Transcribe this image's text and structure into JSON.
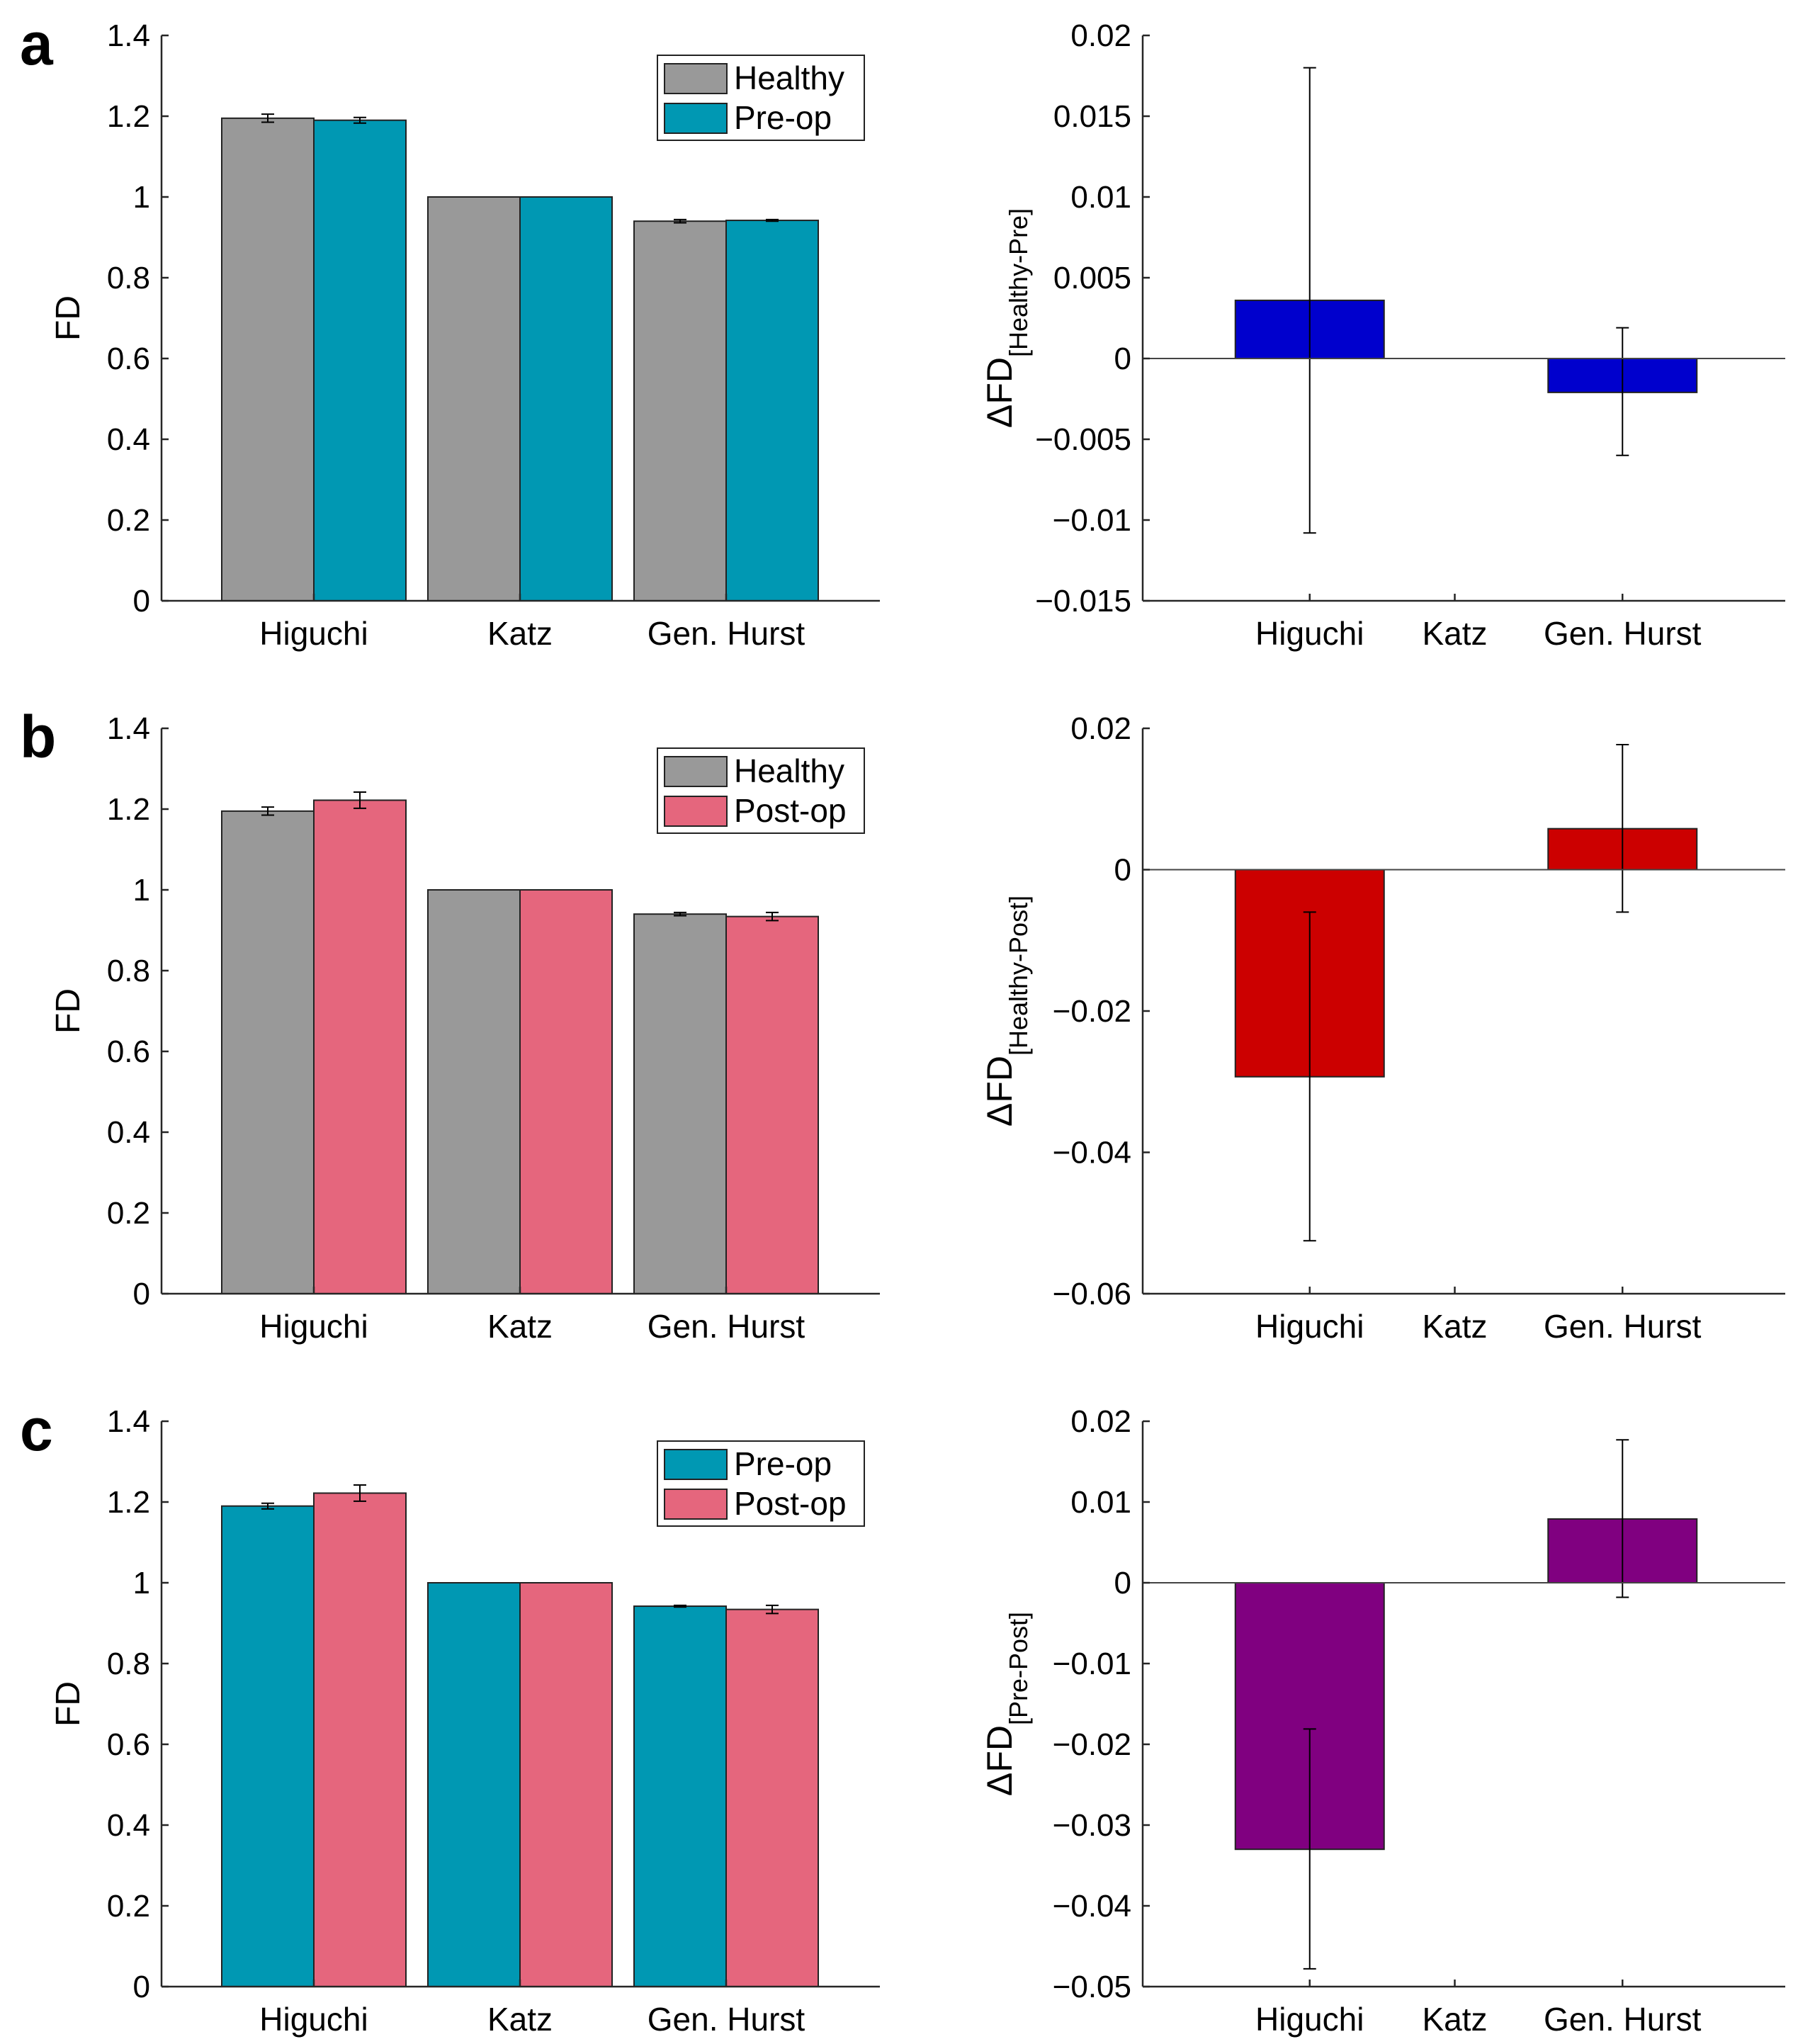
{
  "panel_labels": [
    "a",
    "b",
    "c"
  ],
  "colors": {
    "healthy": "#999999",
    "preop": "#0098b3",
    "postop": "#e5667d",
    "diff_a": "#0000cd",
    "diff_b": "#cc0000",
    "diff_c": "#800080",
    "axis": "#262626"
  },
  "chart_data": [
    {
      "panel": "a",
      "side": "left",
      "type": "bar",
      "categories": [
        "Higuchi",
        "Katz",
        "Gen. Hurst"
      ],
      "ylabel": "FD",
      "ylim": [
        0,
        1.4
      ],
      "yticks": [
        "0",
        "0.2",
        "0.4",
        "0.6",
        "0.8",
        "1",
        "1.2",
        "1.4"
      ],
      "tick_values": [
        0,
        0.2,
        0.4,
        0.6,
        0.8,
        1,
        1.2,
        1.4
      ],
      "legend": "top-right",
      "series": [
        {
          "name": "Healthy",
          "color_key": "healthy",
          "values": [
            1.195,
            1.0,
            0.94
          ],
          "errors": [
            0.01,
            0.0,
            0.004
          ]
        },
        {
          "name": "Pre-op",
          "color_key": "preop",
          "values": [
            1.19,
            1.0,
            0.942
          ],
          "errors": [
            0.007,
            0.0,
            0.002
          ]
        }
      ]
    },
    {
      "panel": "a",
      "side": "right",
      "type": "bar",
      "categories": [
        "Higuchi",
        "Katz",
        "Gen. Hurst"
      ],
      "ylabel_main": "ΔFD",
      "ylabel_sub": "[Healthy-Pre]",
      "ylim": [
        -0.015,
        0.02
      ],
      "yticks": [
        "−0.015",
        "−0.01",
        "−0.005",
        "0",
        "0.005",
        "0.01",
        "0.015",
        "0.02"
      ],
      "tick_values": [
        -0.015,
        -0.01,
        -0.005,
        0,
        0.005,
        0.01,
        0.015,
        0.02
      ],
      "color_key": "diff_a",
      "values": [
        0.0036,
        0.0,
        -0.0021
      ],
      "error_low": [
        -0.0108,
        0.0,
        -0.006
      ],
      "error_high": [
        0.018,
        0.0,
        0.0019
      ]
    },
    {
      "panel": "b",
      "side": "left",
      "type": "bar",
      "categories": [
        "Higuchi",
        "Katz",
        "Gen. Hurst"
      ],
      "ylabel": "FD",
      "ylim": [
        0,
        1.4
      ],
      "yticks": [
        "0",
        "0.2",
        "0.4",
        "0.6",
        "0.8",
        "1",
        "1.2",
        "1.4"
      ],
      "tick_values": [
        0,
        0.2,
        0.4,
        0.6,
        0.8,
        1,
        1.2,
        1.4
      ],
      "legend": "top-right",
      "series": [
        {
          "name": "Healthy",
          "color_key": "healthy",
          "values": [
            1.195,
            1.0,
            0.94
          ],
          "errors": [
            0.01,
            0.0,
            0.004
          ]
        },
        {
          "name": "Post-op",
          "color_key": "postop",
          "values": [
            1.222,
            1.0,
            0.934
          ],
          "errors": [
            0.02,
            0.0,
            0.01
          ]
        }
      ]
    },
    {
      "panel": "b",
      "side": "right",
      "type": "bar",
      "categories": [
        "Higuchi",
        "Katz",
        "Gen. Hurst"
      ],
      "ylabel_main": "ΔFD",
      "ylabel_sub": "[Healthy-Post]",
      "ylim": [
        -0.06,
        0.02
      ],
      "yticks": [
        "−0.06",
        "−0.04",
        "−0.02",
        "0",
        "0.02"
      ],
      "tick_values": [
        -0.06,
        -0.04,
        -0.02,
        0,
        0.02
      ],
      "color_key": "diff_b",
      "values": [
        -0.0293,
        0.0,
        0.0058
      ],
      "error_low": [
        -0.0525,
        0.0,
        -0.006
      ],
      "error_high": [
        -0.006,
        0.0,
        0.0177
      ]
    },
    {
      "panel": "c",
      "side": "left",
      "type": "bar",
      "categories": [
        "Higuchi",
        "Katz",
        "Gen. Hurst"
      ],
      "ylabel": "FD",
      "ylim": [
        0,
        1.4
      ],
      "yticks": [
        "0",
        "0.2",
        "0.4",
        "0.6",
        "0.8",
        "1",
        "1.2",
        "1.4"
      ],
      "tick_values": [
        0,
        0.2,
        0.4,
        0.6,
        0.8,
        1,
        1.2,
        1.4
      ],
      "legend": "top-right",
      "series": [
        {
          "name": "Pre-op",
          "color_key": "preop",
          "values": [
            1.19,
            1.0,
            0.942
          ],
          "errors": [
            0.007,
            0.0,
            0.002
          ]
        },
        {
          "name": "Post-op",
          "color_key": "postop",
          "values": [
            1.222,
            1.0,
            0.934
          ],
          "errors": [
            0.02,
            0.0,
            0.01
          ]
        }
      ]
    },
    {
      "panel": "c",
      "side": "right",
      "type": "bar",
      "categories": [
        "Higuchi",
        "Katz",
        "Gen. Hurst"
      ],
      "ylabel_main": "ΔFD",
      "ylabel_sub": "[Pre-Post]",
      "ylim": [
        -0.05,
        0.02
      ],
      "yticks": [
        "−0.05",
        "−0.04",
        "−0.03",
        "−0.02",
        "−0.01",
        "0",
        "0.01",
        "0.02"
      ],
      "tick_values": [
        -0.05,
        -0.04,
        -0.03,
        -0.02,
        -0.01,
        0,
        0.01,
        0.02
      ],
      "color_key": "diff_c",
      "values": [
        -0.033,
        0.0,
        0.0079
      ],
      "error_low": [
        -0.0478,
        0.0,
        -0.0018
      ],
      "error_high": [
        -0.0181,
        0.0,
        0.0177
      ]
    }
  ]
}
